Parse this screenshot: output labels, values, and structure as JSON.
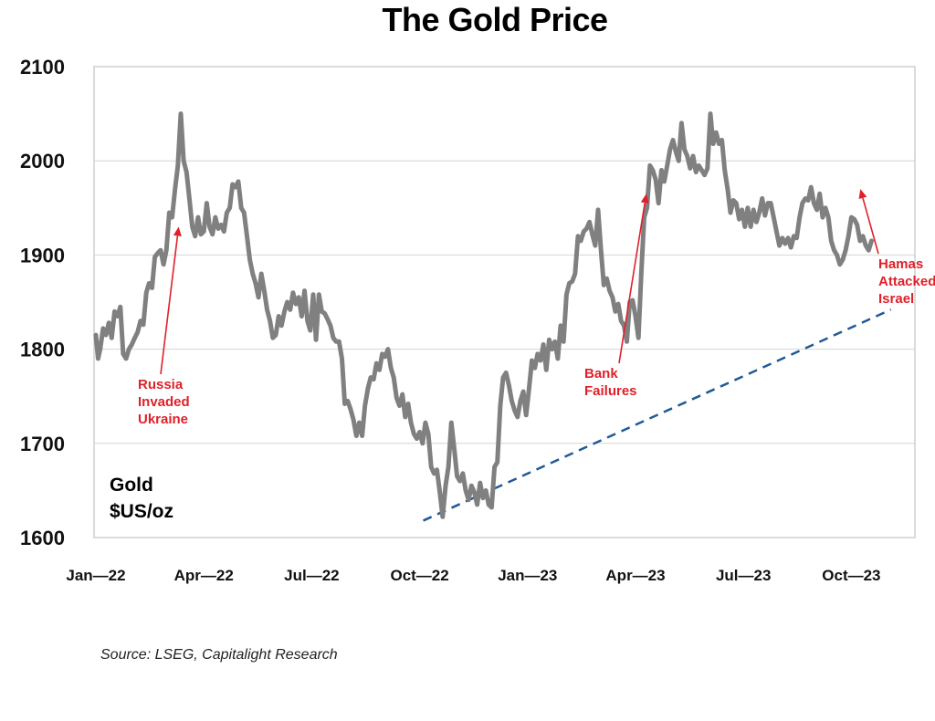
{
  "chart_data": {
    "type": "line",
    "title": "The Gold Price",
    "xlabel": "",
    "ylabel": "",
    "unit_label": [
      "Gold",
      "$US/oz"
    ],
    "ylim": [
      1600,
      2100
    ],
    "yticks": [
      1600,
      1700,
      1800,
      1900,
      2000,
      2100
    ],
    "xlim": [
      "2022-01-01",
      "2023-11-15"
    ],
    "x_tick_labels": [
      "Jan—22",
      "Apr—22",
      "Jul—22",
      "Oct—22",
      "Jan—23",
      "Apr—23",
      "Jul—23",
      "Oct—23"
    ],
    "grid": true,
    "line_color": "#808080",
    "trend_color": "#1f5a96",
    "annotation_color": "#e0202a",
    "series": [
      {
        "name": "Gold",
        "x_months": [
          0.0,
          0.06,
          0.12,
          0.2,
          0.28,
          0.36,
          0.44,
          0.52,
          0.6,
          0.68,
          0.76,
          0.84,
          0.92,
          1.0,
          1.08,
          1.16,
          1.24,
          1.32,
          1.4,
          1.48,
          1.56,
          1.64,
          1.72,
          1.8,
          1.88,
          1.96,
          2.04,
          2.12,
          2.2,
          2.28,
          2.36,
          2.44,
          2.52,
          2.6,
          2.68,
          2.76,
          2.84,
          2.92,
          3.0,
          3.08,
          3.16,
          3.24,
          3.32,
          3.4,
          3.48,
          3.56,
          3.64,
          3.72,
          3.8,
          3.88,
          3.96,
          4.04,
          4.12,
          4.2,
          4.28,
          4.36,
          4.44,
          4.52,
          4.6,
          4.68,
          4.76,
          4.84,
          4.92,
          5.0,
          5.08,
          5.16,
          5.24,
          5.32,
          5.4,
          5.48,
          5.56,
          5.64,
          5.72,
          5.8,
          5.88,
          5.96,
          6.04,
          6.12,
          6.2,
          6.28,
          6.36,
          6.44,
          6.52,
          6.6,
          6.68,
          6.76,
          6.84,
          6.92,
          7.0,
          7.08,
          7.16,
          7.24,
          7.32,
          7.4,
          7.48,
          7.56,
          7.64,
          7.72,
          7.8,
          7.88,
          7.96,
          8.04,
          8.12,
          8.2,
          8.28,
          8.36,
          8.44,
          8.52,
          8.6,
          8.68,
          8.76,
          8.84,
          8.92,
          9.0,
          9.08,
          9.16,
          9.24,
          9.32,
          9.4,
          9.48,
          9.56,
          9.64,
          9.72,
          9.8,
          9.88,
          9.96,
          10.04,
          10.12,
          10.2,
          10.28,
          10.36,
          10.44,
          10.52,
          10.6,
          10.68,
          10.76,
          10.84,
          10.92,
          11.0,
          11.08,
          11.16,
          11.24,
          11.32,
          11.4,
          11.48,
          11.56,
          11.64,
          11.72,
          11.8,
          11.88,
          11.96,
          12.04,
          12.12,
          12.2,
          12.28,
          12.36,
          12.44,
          12.52,
          12.6,
          12.68,
          12.76,
          12.84,
          12.92,
          13.0,
          13.08,
          13.16,
          13.24,
          13.32,
          13.4,
          13.48,
          13.56,
          13.64,
          13.72,
          13.8,
          13.88,
          13.96,
          14.04,
          14.12,
          14.2,
          14.28,
          14.36,
          14.44,
          14.52,
          14.6,
          14.68,
          14.76,
          14.84,
          14.92,
          15.0,
          15.08,
          15.16,
          15.24,
          15.32,
          15.4,
          15.48,
          15.56,
          15.64,
          15.72,
          15.8,
          15.88,
          15.96,
          16.04,
          16.12,
          16.2,
          16.28,
          16.36,
          16.44,
          16.52,
          16.6,
          16.68,
          16.76,
          16.84,
          16.92,
          17.0,
          17.08,
          17.16,
          17.24,
          17.32,
          17.4,
          17.48,
          17.56,
          17.64,
          17.72,
          17.8,
          17.88,
          17.96,
          18.04,
          18.12,
          18.2,
          18.28,
          18.36,
          18.44,
          18.52,
          18.6,
          18.68,
          18.76,
          18.84,
          18.92,
          19.0,
          19.08,
          19.16,
          19.24,
          19.32,
          19.4,
          19.48,
          19.56,
          19.64,
          19.72,
          19.8,
          19.88,
          19.96,
          20.04,
          20.12,
          20.2,
          20.28,
          20.36,
          20.44,
          20.52,
          20.6,
          20.68,
          20.76,
          20.84,
          20.92,
          21.0,
          21.08,
          21.16,
          21.24,
          21.32,
          21.4,
          21.48,
          21.56
        ],
        "values": [
          1815,
          1790,
          1800,
          1822,
          1815,
          1828,
          1812,
          1840,
          1835,
          1845,
          1795,
          1790,
          1800,
          1805,
          1812,
          1818,
          1830,
          1826,
          1860,
          1870,
          1865,
          1898,
          1902,
          1905,
          1890,
          1905,
          1945,
          1940,
          1970,
          1995,
          2050,
          2000,
          1988,
          1960,
          1930,
          1920,
          1940,
          1922,
          1925,
          1955,
          1930,
          1922,
          1940,
          1928,
          1932,
          1925,
          1945,
          1950,
          1975,
          1972,
          1978,
          1950,
          1945,
          1920,
          1895,
          1880,
          1870,
          1855,
          1880,
          1862,
          1842,
          1830,
          1812,
          1815,
          1835,
          1825,
          1840,
          1850,
          1842,
          1860,
          1848,
          1855,
          1835,
          1862,
          1830,
          1820,
          1858,
          1810,
          1858,
          1840,
          1838,
          1832,
          1825,
          1812,
          1808,
          1808,
          1790,
          1742,
          1745,
          1736,
          1725,
          1708,
          1722,
          1708,
          1740,
          1758,
          1770,
          1768,
          1785,
          1778,
          1795,
          1792,
          1800,
          1780,
          1770,
          1748,
          1740,
          1752,
          1728,
          1742,
          1722,
          1710,
          1705,
          1712,
          1700,
          1722,
          1710,
          1675,
          1668,
          1672,
          1648,
          1622,
          1655,
          1675,
          1722,
          1695,
          1665,
          1660,
          1668,
          1650,
          1640,
          1655,
          1648,
          1635,
          1658,
          1642,
          1650,
          1635,
          1632,
          1675,
          1680,
          1740,
          1770,
          1775,
          1762,
          1745,
          1735,
          1728,
          1745,
          1755,
          1730,
          1758,
          1788,
          1780,
          1795,
          1788,
          1805,
          1778,
          1810,
          1800,
          1808,
          1790,
          1825,
          1808,
          1858,
          1870,
          1872,
          1880,
          1920,
          1915,
          1925,
          1928,
          1935,
          1922,
          1910,
          1948,
          1905,
          1868,
          1875,
          1862,
          1855,
          1840,
          1848,
          1830,
          1825,
          1808,
          1850,
          1852,
          1835,
          1812,
          1880,
          1940,
          1950,
          1995,
          1990,
          1980,
          1955,
          1990,
          1978,
          1995,
          2012,
          2022,
          2010,
          2000,
          2040,
          2012,
          2005,
          1992,
          2005,
          1988,
          1995,
          1990,
          1985,
          1992,
          2050,
          2018,
          2030,
          2018,
          2022,
          1990,
          1970,
          1945,
          1958,
          1955,
          1938,
          1948,
          1930,
          1950,
          1930,
          1948,
          1935,
          1945,
          1960,
          1942,
          1955,
          1955,
          1940,
          1925,
          1910,
          1918,
          1912,
          1918,
          1908,
          1920,
          1918,
          1940,
          1955,
          1960,
          1958,
          1972,
          1955,
          1948,
          1965,
          1940,
          1950,
          1940,
          1915,
          1905,
          1900,
          1890,
          1895,
          1905,
          1920,
          1940,
          1938,
          1932,
          1915,
          1920,
          1910,
          1905,
          1915,
          1935,
          1930,
          1920,
          1900,
          1865,
          1835,
          1820,
          1818,
          1850,
          1860,
          1872,
          1930,
          1945,
          1975,
          1980,
          1972,
          1985,
          2005,
          1998,
          1985,
          1992,
          1978,
          1965,
          1945,
          1940
        ],
        "note": "Approximate daily-sampled gold price read from chart; x in months since Jan 2022"
      }
    ],
    "trendline": {
      "name": "support-trend",
      "style": "dashed",
      "from": {
        "x_months": 9.1,
        "value": 1618
      },
      "to": {
        "x_months": 22.1,
        "value": 1842
      }
    },
    "annotations": [
      {
        "lines": [
          "Russia",
          "Invaded",
          "Ukraine"
        ],
        "arrow_to": {
          "x_months": 2.3,
          "value": 1930
        }
      },
      {
        "lines": [
          "Bank",
          "Failures"
        ],
        "arrow_to": {
          "x_months": 15.3,
          "value": 1965
        }
      },
      {
        "lines": [
          "Hamas",
          "Attacked",
          "Israel"
        ],
        "arrow_to": {
          "x_months": 21.25,
          "value": 1970
        }
      }
    ],
    "source": "Source: LSEG, Capitalight Research"
  }
}
